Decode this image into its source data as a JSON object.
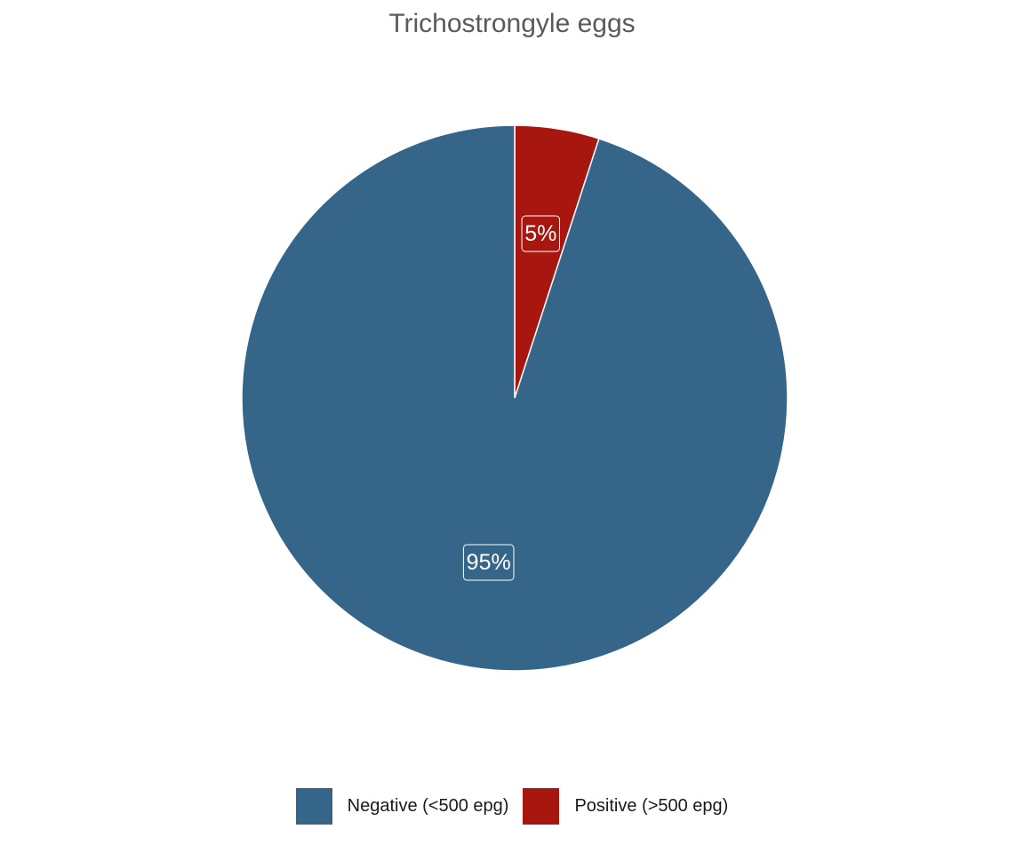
{
  "chart_data": {
    "type": "pie",
    "title": "Trichostrongyle eggs",
    "categories": [
      "Negative (<500 epg)",
      "Positive (>500 epg)"
    ],
    "values": [
      95,
      5
    ],
    "labels": [
      "95%",
      "5%"
    ],
    "colors": [
      "#356689",
      "#a71710"
    ],
    "start_angle": "12 o'clock",
    "direction": "counterclockwise",
    "legend_position": "bottom"
  }
}
